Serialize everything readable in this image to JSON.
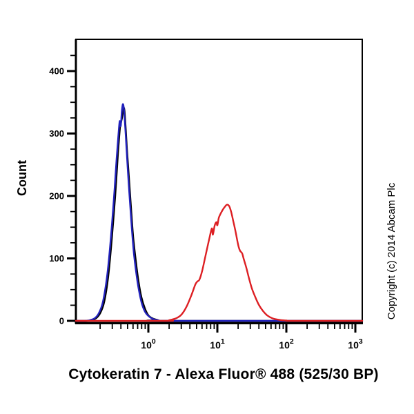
{
  "title": "Cytokeratin 7 - Alexa Fluor® 488 (525/30 BP)",
  "copyright": "Copyright (c) 2014 Abcam Plc",
  "axes": {
    "y_title": "Count",
    "y_ticks": [
      0,
      100,
      200,
      300,
      400
    ],
    "y_minor_step": 25,
    "y_minor_max": 425,
    "y_axis_max": 450,
    "x_base_label": "10",
    "x_tick_exponents": [
      0,
      1,
      2,
      3
    ],
    "x_log_min": -1.05,
    "x_log_max": 3.1
  },
  "colors": {
    "axis": "#000000",
    "black_curve": "#000000",
    "blue_curve": "#2222bd",
    "red_curve": "#dd1f23",
    "background": "#ffffff"
  },
  "chart_data": {
    "type": "line",
    "subtype": "flow-cytometry-histogram",
    "title": "Cytokeratin 7 - Alexa Fluor® 488 (525/30 BP)",
    "xlabel": "",
    "ylabel": "Count",
    "x_scale": "log10",
    "x_range": [
      0.089,
      1259
    ],
    "ylim": [
      0,
      450
    ],
    "yticks": [
      0,
      100,
      200,
      300,
      400
    ],
    "xtick_labels": [
      "10^0",
      "10^1",
      "10^2",
      "10^3"
    ],
    "grid": false,
    "legend": "none",
    "series": [
      {
        "name": "black-control-curve",
        "color": "#000000",
        "peak": {
          "x": 0.44,
          "count": 341
        },
        "points": [
          [
            0.089,
            0
          ],
          [
            0.126,
            0
          ],
          [
            0.148,
            1
          ],
          [
            0.174,
            4
          ],
          [
            0.2,
            12
          ],
          [
            0.229,
            30
          ],
          [
            0.263,
            72
          ],
          [
            0.295,
            130
          ],
          [
            0.331,
            200
          ],
          [
            0.363,
            268
          ],
          [
            0.389,
            310
          ],
          [
            0.403,
            318
          ],
          [
            0.417,
            326
          ],
          [
            0.437,
            341
          ],
          [
            0.452,
            336
          ],
          [
            0.468,
            312
          ],
          [
            0.49,
            275
          ],
          [
            0.525,
            228
          ],
          [
            0.562,
            180
          ],
          [
            0.603,
            135
          ],
          [
            0.661,
            95
          ],
          [
            0.724,
            62
          ],
          [
            0.794,
            38
          ],
          [
            0.891,
            20
          ],
          [
            1.0,
            9
          ],
          [
            1.15,
            4
          ],
          [
            1.35,
            1.5
          ],
          [
            1.66,
            0
          ],
          [
            1259,
            0
          ]
        ]
      },
      {
        "name": "blue-control-curve",
        "color": "#2222bd",
        "peak": {
          "x": 0.43,
          "count": 347
        },
        "points": [
          [
            0.089,
            0
          ],
          [
            0.12,
            0
          ],
          [
            0.141,
            1
          ],
          [
            0.166,
            4
          ],
          [
            0.191,
            12
          ],
          [
            0.219,
            30
          ],
          [
            0.251,
            70
          ],
          [
            0.282,
            125
          ],
          [
            0.316,
            195
          ],
          [
            0.347,
            260
          ],
          [
            0.372,
            305
          ],
          [
            0.385,
            320
          ],
          [
            0.398,
            312
          ],
          [
            0.412,
            335
          ],
          [
            0.427,
            347
          ],
          [
            0.442,
            340
          ],
          [
            0.457,
            318
          ],
          [
            0.479,
            282
          ],
          [
            0.501,
            245
          ],
          [
            0.537,
            195
          ],
          [
            0.575,
            148
          ],
          [
            0.617,
            108
          ],
          [
            0.676,
            72
          ],
          [
            0.741,
            45
          ],
          [
            0.813,
            26
          ],
          [
            0.912,
            13
          ],
          [
            1.05,
            6
          ],
          [
            1.2,
            2.5
          ],
          [
            1.41,
            1
          ],
          [
            1.78,
            0
          ],
          [
            1259,
            0
          ]
        ]
      },
      {
        "name": "red-positive-curve",
        "color": "#dd1f23",
        "peak": {
          "x": 13.8,
          "count": 186
        },
        "points": [
          [
            0.089,
            0
          ],
          [
            1.78,
            0
          ],
          [
            2.0,
            1
          ],
          [
            2.51,
            4
          ],
          [
            3.02,
            10
          ],
          [
            3.55,
            22
          ],
          [
            4.17,
            40
          ],
          [
            4.79,
            58
          ],
          [
            5.13,
            63
          ],
          [
            5.5,
            66
          ],
          [
            6.03,
            80
          ],
          [
            6.76,
            105
          ],
          [
            7.59,
            130
          ],
          [
            8.32,
            148
          ],
          [
            8.61,
            138
          ],
          [
            9.12,
            152
          ],
          [
            9.66,
            158
          ],
          [
            10.0,
            153
          ],
          [
            10.5,
            165
          ],
          [
            11.2,
            172
          ],
          [
            12.0,
            178
          ],
          [
            12.9,
            183
          ],
          [
            13.8,
            186
          ],
          [
            14.8,
            184
          ],
          [
            15.8,
            175
          ],
          [
            17.0,
            160
          ],
          [
            18.2,
            145
          ],
          [
            19.5,
            128
          ],
          [
            20.4,
            118
          ],
          [
            21.4,
            112
          ],
          [
            22.9,
            108
          ],
          [
            24.0,
            100
          ],
          [
            26.3,
            85
          ],
          [
            28.8,
            68
          ],
          [
            31.6,
            52
          ],
          [
            35.5,
            38
          ],
          [
            39.8,
            26
          ],
          [
            45.7,
            16
          ],
          [
            52.5,
            9
          ],
          [
            63.1,
            4
          ],
          [
            79.4,
            1.5
          ],
          [
            100,
            0.5
          ],
          [
            126,
            0
          ],
          [
            1259,
            0
          ]
        ]
      }
    ]
  }
}
